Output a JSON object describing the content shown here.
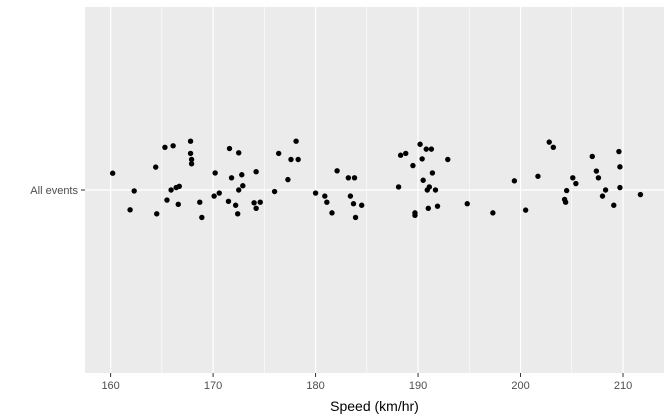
{
  "chart_data": {
    "type": "scatter",
    "title": "",
    "xlabel": "Speed (km/hr)",
    "ylabel": "",
    "categories": [
      "All events"
    ],
    "xlim": [
      157.5,
      214
    ],
    "ylim": [
      0.4,
      1.6
    ],
    "x_ticks": [
      160,
      170,
      180,
      190,
      200,
      210
    ],
    "grid": true,
    "legend": "none",
    "colors": {
      "panel": "#EBEBEB",
      "grid": "#FFFFFF",
      "point": "#000000",
      "tick": "#4D4D4D"
    },
    "points": [
      {
        "x": 160.2,
        "y": 1.055
      },
      {
        "x": 161.9,
        "y": 0.935
      },
      {
        "x": 162.3,
        "y": 0.997
      },
      {
        "x": 164.4,
        "y": 1.075
      },
      {
        "x": 164.5,
        "y": 0.922
      },
      {
        "x": 165.3,
        "y": 1.14
      },
      {
        "x": 165.5,
        "y": 0.967
      },
      {
        "x": 165.9,
        "y": 1.0
      },
      {
        "x": 166.1,
        "y": 1.145
      },
      {
        "x": 166.4,
        "y": 1.008
      },
      {
        "x": 166.6,
        "y": 0.953
      },
      {
        "x": 166.7,
        "y": 1.012
      },
      {
        "x": 167.8,
        "y": 1.16
      },
      {
        "x": 167.8,
        "y": 1.12
      },
      {
        "x": 167.9,
        "y": 1.086
      },
      {
        "x": 167.9,
        "y": 1.1
      },
      {
        "x": 168.7,
        "y": 0.96
      },
      {
        "x": 168.9,
        "y": 0.91
      },
      {
        "x": 170.1,
        "y": 0.98
      },
      {
        "x": 170.2,
        "y": 1.056
      },
      {
        "x": 170.6,
        "y": 0.99
      },
      {
        "x": 171.5,
        "y": 0.963
      },
      {
        "x": 171.6,
        "y": 1.136
      },
      {
        "x": 171.8,
        "y": 1.04
      },
      {
        "x": 172.2,
        "y": 0.95
      },
      {
        "x": 172.4,
        "y": 0.922
      },
      {
        "x": 172.5,
        "y": 1.122
      },
      {
        "x": 172.5,
        "y": 1.0
      },
      {
        "x": 172.8,
        "y": 1.05
      },
      {
        "x": 172.9,
        "y": 1.014
      },
      {
        "x": 174.0,
        "y": 0.958
      },
      {
        "x": 174.2,
        "y": 0.94
      },
      {
        "x": 174.2,
        "y": 1.06
      },
      {
        "x": 174.6,
        "y": 0.96
      },
      {
        "x": 176.0,
        "y": 0.995
      },
      {
        "x": 176.4,
        "y": 1.12
      },
      {
        "x": 177.3,
        "y": 1.034
      },
      {
        "x": 177.6,
        "y": 1.1
      },
      {
        "x": 178.1,
        "y": 1.16
      },
      {
        "x": 178.3,
        "y": 1.1
      },
      {
        "x": 180.0,
        "y": 0.99
      },
      {
        "x": 180.9,
        "y": 0.98
      },
      {
        "x": 181.1,
        "y": 0.96
      },
      {
        "x": 181.6,
        "y": 0.925
      },
      {
        "x": 182.1,
        "y": 1.063
      },
      {
        "x": 183.2,
        "y": 1.04
      },
      {
        "x": 183.4,
        "y": 0.98
      },
      {
        "x": 183.7,
        "y": 0.955
      },
      {
        "x": 183.8,
        "y": 1.04
      },
      {
        "x": 183.9,
        "y": 0.91
      },
      {
        "x": 184.5,
        "y": 0.95
      },
      {
        "x": 188.1,
        "y": 1.01
      },
      {
        "x": 188.3,
        "y": 1.114
      },
      {
        "x": 188.8,
        "y": 1.12
      },
      {
        "x": 189.5,
        "y": 1.08
      },
      {
        "x": 189.7,
        "y": 0.925
      },
      {
        "x": 189.7,
        "y": 0.917
      },
      {
        "x": 190.2,
        "y": 1.15
      },
      {
        "x": 190.4,
        "y": 1.102
      },
      {
        "x": 190.5,
        "y": 1.032
      },
      {
        "x": 190.8,
        "y": 1.134
      },
      {
        "x": 190.9,
        "y": 1.0
      },
      {
        "x": 191.0,
        "y": 0.94
      },
      {
        "x": 191.1,
        "y": 1.01
      },
      {
        "x": 191.3,
        "y": 1.134
      },
      {
        "x": 191.4,
        "y": 1.056
      },
      {
        "x": 191.7,
        "y": 1.0
      },
      {
        "x": 191.9,
        "y": 0.947
      },
      {
        "x": 192.9,
        "y": 1.1
      },
      {
        "x": 194.8,
        "y": 0.955
      },
      {
        "x": 197.3,
        "y": 0.925
      },
      {
        "x": 199.4,
        "y": 1.03
      },
      {
        "x": 200.5,
        "y": 0.934
      },
      {
        "x": 201.7,
        "y": 1.045
      },
      {
        "x": 202.8,
        "y": 1.157
      },
      {
        "x": 203.2,
        "y": 1.14
      },
      {
        "x": 204.3,
        "y": 0.969
      },
      {
        "x": 204.4,
        "y": 0.96
      },
      {
        "x": 204.5,
        "y": 0.998
      },
      {
        "x": 205.1,
        "y": 1.04
      },
      {
        "x": 205.4,
        "y": 1.021
      },
      {
        "x": 207.0,
        "y": 1.11
      },
      {
        "x": 207.4,
        "y": 1.062
      },
      {
        "x": 207.6,
        "y": 1.04
      },
      {
        "x": 208.0,
        "y": 0.98
      },
      {
        "x": 208.3,
        "y": 1.0
      },
      {
        "x": 209.1,
        "y": 0.95
      },
      {
        "x": 209.6,
        "y": 1.126
      },
      {
        "x": 209.7,
        "y": 1.076
      },
      {
        "x": 209.7,
        "y": 1.008
      },
      {
        "x": 211.7,
        "y": 0.985
      }
    ]
  }
}
